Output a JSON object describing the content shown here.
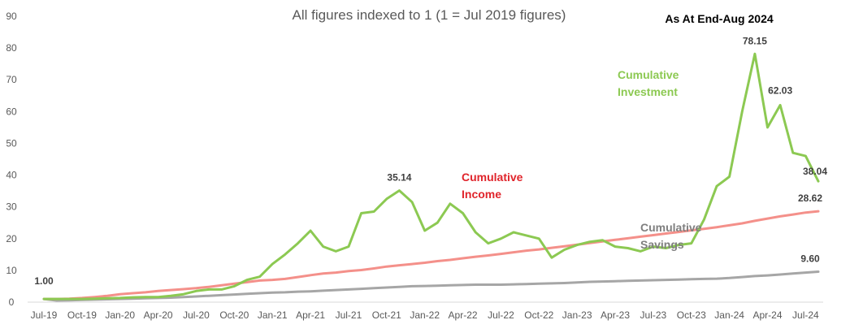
{
  "chart_data": {
    "type": "line",
    "title": "All figures indexed to 1 (1 = Jul 2019 figures)",
    "subtitle": "As At End-Aug 2024",
    "ylim": [
      0,
      90
    ],
    "yticks": [
      0,
      10,
      20,
      30,
      40,
      50,
      60,
      70,
      80,
      90
    ],
    "grid": false,
    "x": [
      "Jul-19",
      "Aug-19",
      "Sep-19",
      "Oct-19",
      "Nov-19",
      "Dec-19",
      "Jan-20",
      "Feb-20",
      "Mar-20",
      "Apr-20",
      "May-20",
      "Jun-20",
      "Jul-20",
      "Aug-20",
      "Sep-20",
      "Oct-20",
      "Nov-20",
      "Dec-20",
      "Jan-21",
      "Feb-21",
      "Mar-21",
      "Apr-21",
      "May-21",
      "Jun-21",
      "Jul-21",
      "Aug-21",
      "Sep-21",
      "Oct-21",
      "Nov-21",
      "Dec-21",
      "Jan-22",
      "Feb-22",
      "Mar-22",
      "Apr-22",
      "May-22",
      "Jun-22",
      "Jul-22",
      "Aug-22",
      "Sep-22",
      "Oct-22",
      "Nov-22",
      "Dec-22",
      "Jan-23",
      "Feb-23",
      "Mar-23",
      "Apr-23",
      "May-23",
      "Jun-23",
      "Jul-23",
      "Aug-23",
      "Sep-23",
      "Oct-23",
      "Nov-23",
      "Dec-23",
      "Jan-24",
      "Feb-24",
      "Mar-24",
      "Apr-24",
      "May-24",
      "Jun-24",
      "Jul-24",
      "Aug-24"
    ],
    "xtick_labels": [
      "Jul-19",
      "Oct-19",
      "Jan-20",
      "Apr-20",
      "Jul-20",
      "Oct-20",
      "Jan-21",
      "Apr-21",
      "Jul-21",
      "Oct-21",
      "Jan-22",
      "Apr-22",
      "Jul-22",
      "Oct-22",
      "Jan-23",
      "Apr-23",
      "Jul-23",
      "Oct-23",
      "Jan-24",
      "Apr-24",
      "Jul-24"
    ],
    "series": [
      {
        "name": "Cumulative Investment",
        "label_lines": [
          "Cumulative",
          "Investment"
        ],
        "color": "#8CC952",
        "values": [
          1.0,
          1.0,
          1.0,
          1.0,
          1.1,
          1.2,
          1.3,
          1.5,
          1.6,
          1.6,
          2.0,
          2.5,
          3.5,
          4.0,
          4.0,
          5.0,
          7.0,
          8.0,
          12.0,
          15.0,
          18.5,
          22.5,
          17.5,
          16.0,
          17.5,
          28.0,
          28.5,
          32.5,
          35.14,
          31.5,
          22.5,
          25.0,
          31.0,
          28.0,
          22.0,
          18.5,
          20.0,
          22.0,
          21.0,
          20.0,
          14.0,
          16.5,
          18.0,
          19.0,
          19.5,
          17.5,
          17.0,
          16.0,
          17.5,
          17.0,
          18.0,
          18.5,
          26.0,
          36.5,
          39.5,
          60.0,
          78.15,
          55.0,
          62.03,
          47.0,
          46.0,
          38.04
        ]
      },
      {
        "name": "Cumulative Income",
        "label_lines": [
          "Cumulative",
          "Income"
        ],
        "color": "#F4908A",
        "values": [
          1.0,
          1.0,
          1.1,
          1.3,
          1.6,
          2.0,
          2.5,
          2.8,
          3.1,
          3.5,
          3.8,
          4.1,
          4.4,
          4.8,
          5.3,
          5.8,
          6.3,
          6.8,
          7.0,
          7.3,
          7.9,
          8.5,
          9.0,
          9.3,
          9.8,
          10.1,
          10.6,
          11.2,
          11.6,
          12.0,
          12.4,
          12.9,
          13.3,
          13.8,
          14.3,
          14.7,
          15.2,
          15.7,
          16.2,
          16.6,
          17.1,
          17.6,
          18.1,
          18.6,
          19.1,
          19.6,
          20.1,
          20.6,
          21.1,
          21.6,
          22.1,
          22.6,
          23.1,
          23.6,
          24.2,
          24.8,
          25.6,
          26.3,
          27.0,
          27.6,
          28.2,
          28.62
        ]
      },
      {
        "name": "Cumulative Savings",
        "label_lines": [
          "Cumulative",
          "Savings"
        ],
        "color": "#A6A6A6",
        "values": [
          1.0,
          0.5,
          0.6,
          0.7,
          0.8,
          0.9,
          1.0,
          1.1,
          1.2,
          1.3,
          1.4,
          1.6,
          1.8,
          2.0,
          2.2,
          2.4,
          2.6,
          2.8,
          3.0,
          3.1,
          3.3,
          3.4,
          3.6,
          3.8,
          4.0,
          4.2,
          4.4,
          4.6,
          4.8,
          5.0,
          5.1,
          5.2,
          5.3,
          5.4,
          5.5,
          5.5,
          5.5,
          5.6,
          5.7,
          5.8,
          5.9,
          6.0,
          6.2,
          6.4,
          6.5,
          6.6,
          6.7,
          6.8,
          6.9,
          7.0,
          7.1,
          7.2,
          7.3,
          7.4,
          7.6,
          7.9,
          8.2,
          8.4,
          8.7,
          9.0,
          9.3,
          9.6
        ]
      }
    ],
    "data_labels": [
      {
        "series": 0,
        "index": 0,
        "text": "1.00"
      },
      {
        "series": 0,
        "index": 28,
        "text": "35.14"
      },
      {
        "series": 0,
        "index": 56,
        "text": "78.15"
      },
      {
        "series": 0,
        "index": 58,
        "text": "62.03"
      },
      {
        "series": 0,
        "index": 61,
        "text": "38.04"
      },
      {
        "series": 1,
        "index": 61,
        "text": "28.62"
      },
      {
        "series": 2,
        "index": 61,
        "text": "9.60"
      }
    ]
  }
}
